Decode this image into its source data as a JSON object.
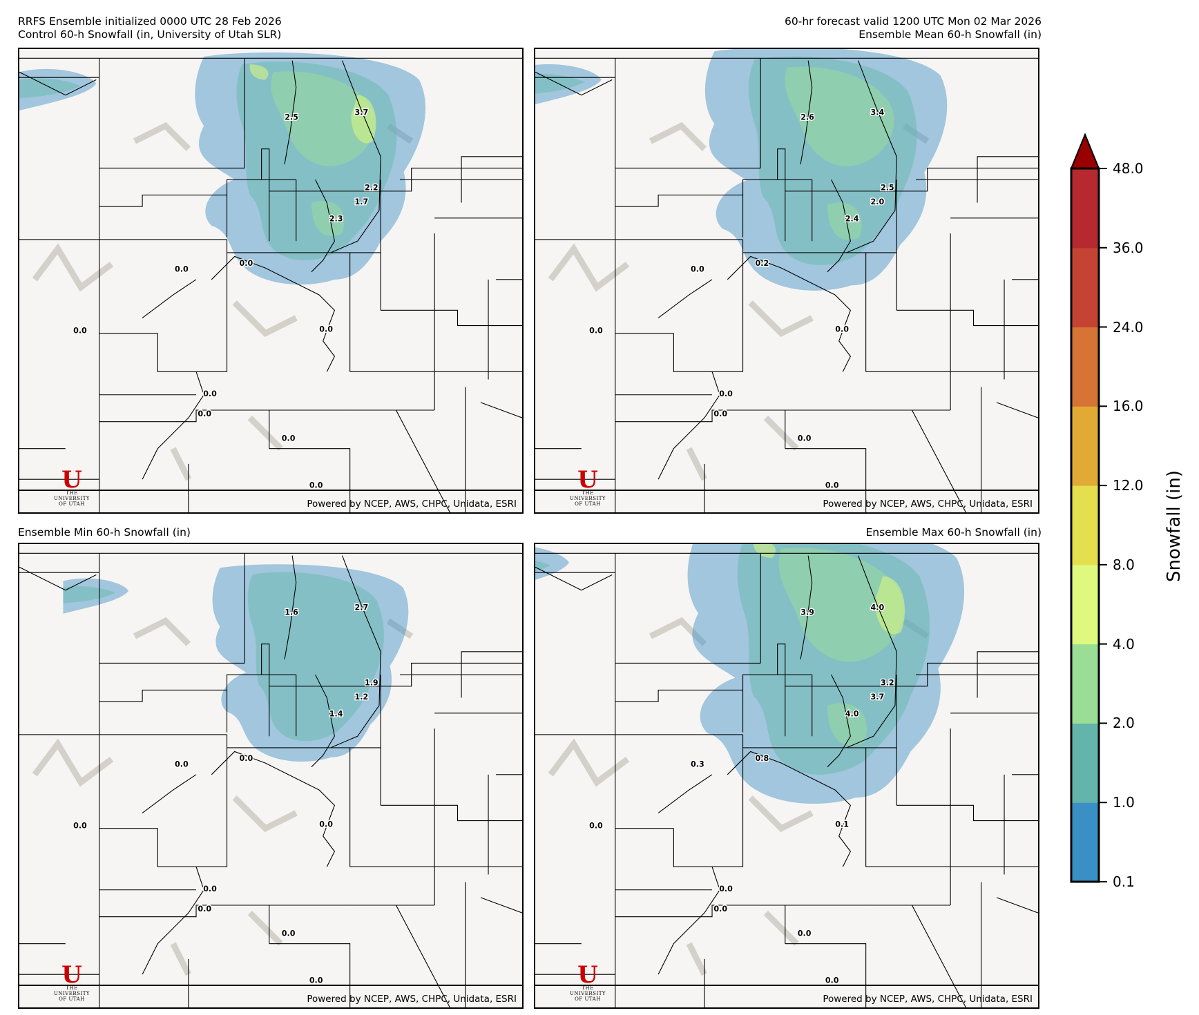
{
  "header": {
    "left_line1": "RRFS Ensemble initialized 0000 UTC 28 Feb 2026",
    "left_line2": "Control 60-h Snowfall (in, University of Utah SLR)",
    "right_line1": "60-hr forecast valid 1200 UTC Mon 02 Mar 2026",
    "right_line2": "Ensemble Mean 60-h Snowfall (in)"
  },
  "panels": [
    {
      "title": "",
      "values": [
        "2.5",
        "3.7",
        "2.2",
        "1.7",
        "2.3",
        "0.0",
        "0.0",
        "0.0",
        "0.0",
        "0.0",
        "0.0",
        "0.0",
        "0.0"
      ],
      "intensity": "control"
    },
    {
      "title": "",
      "values": [
        "2.6",
        "3.4",
        "2.5",
        "2.0",
        "2.4",
        "0.0",
        "0.2",
        "0.0",
        "0.0",
        "0.0",
        "0.0",
        "0.0",
        "0.0"
      ],
      "intensity": "mean"
    },
    {
      "title": "Ensemble Min 60-h Snowfall (in)",
      "values": [
        "1.6",
        "2.7",
        "1.9",
        "1.2",
        "1.4",
        "0.0",
        "0.0",
        "0.0",
        "0.0",
        "0.0",
        "0.0",
        "0.0",
        "0.0"
      ],
      "intensity": "min"
    },
    {
      "title": "Ensemble Max 60-h Snowfall (in)",
      "values": [
        "3.9",
        "4.0",
        "3.2",
        "3.7",
        "4.0",
        "0.3",
        "0.8",
        "0.0",
        "0.1",
        "0.0",
        "0.0",
        "0.0",
        "0.0"
      ],
      "intensity": "max"
    }
  ],
  "attribution": "Powered by NCEP, AWS, CHPC, Unidata, ESRI",
  "logo": {
    "letter": "U",
    "line1": "THE",
    "line2": "UNIVERSITY",
    "line3": "OF UTAH"
  },
  "colorbar": {
    "label": "Snowfall (in)",
    "ticks": [
      "0.1",
      "1.0",
      "2.0",
      "4.0",
      "8.0",
      "12.0",
      "16.0",
      "24.0",
      "36.0",
      "48.0"
    ],
    "colors": [
      "#3a8fc4",
      "#63b5ab",
      "#9ade95",
      "#def97e",
      "#e4e04d",
      "#e0aa35",
      "#d57434",
      "#c44333",
      "#b5292f"
    ],
    "extend_color": "#990000"
  }
}
